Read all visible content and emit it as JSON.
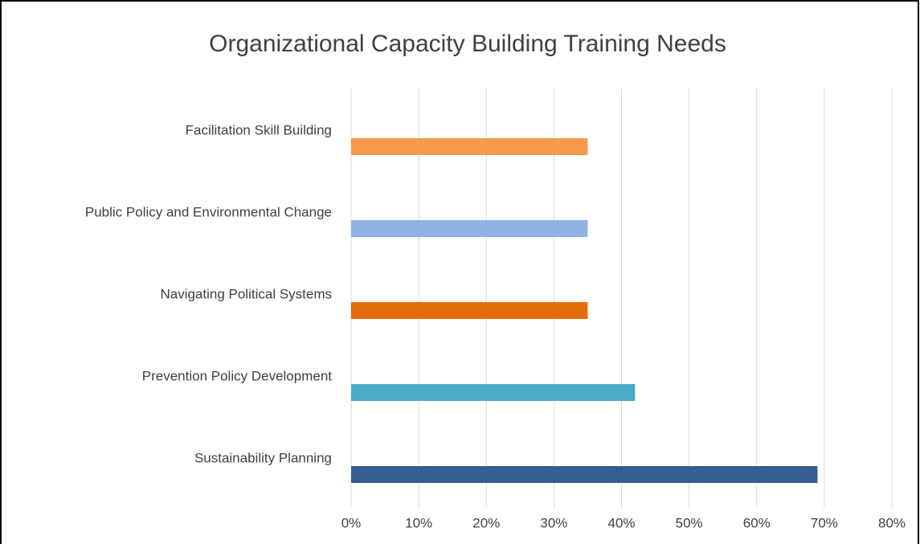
{
  "chart_data": {
    "type": "bar",
    "orientation": "horizontal",
    "title": "Organizational Capacity Building Training Needs",
    "categories": [
      "Facilitation Skill Building",
      "Public Policy and Environmental Change",
      "Navigating Political Systems",
      "Prevention Policy Development",
      "Sustainability Planning"
    ],
    "values": [
      35,
      35,
      35,
      42,
      69
    ],
    "colors": [
      "#f79a4c",
      "#8fb3e2",
      "#e46c0a",
      "#4bacc6",
      "#345e8f"
    ],
    "xlim": [
      0,
      80
    ],
    "xticks": [
      {
        "value": 0,
        "label": "0%"
      },
      {
        "value": 10,
        "label": "10%"
      },
      {
        "value": 20,
        "label": "20%"
      },
      {
        "value": 30,
        "label": "30%"
      },
      {
        "value": 40,
        "label": "40%"
      },
      {
        "value": 50,
        "label": "50%"
      },
      {
        "value": 60,
        "label": "60%"
      },
      {
        "value": 70,
        "label": "70%"
      },
      {
        "value": 80,
        "label": "80%"
      }
    ],
    "grid": true
  }
}
